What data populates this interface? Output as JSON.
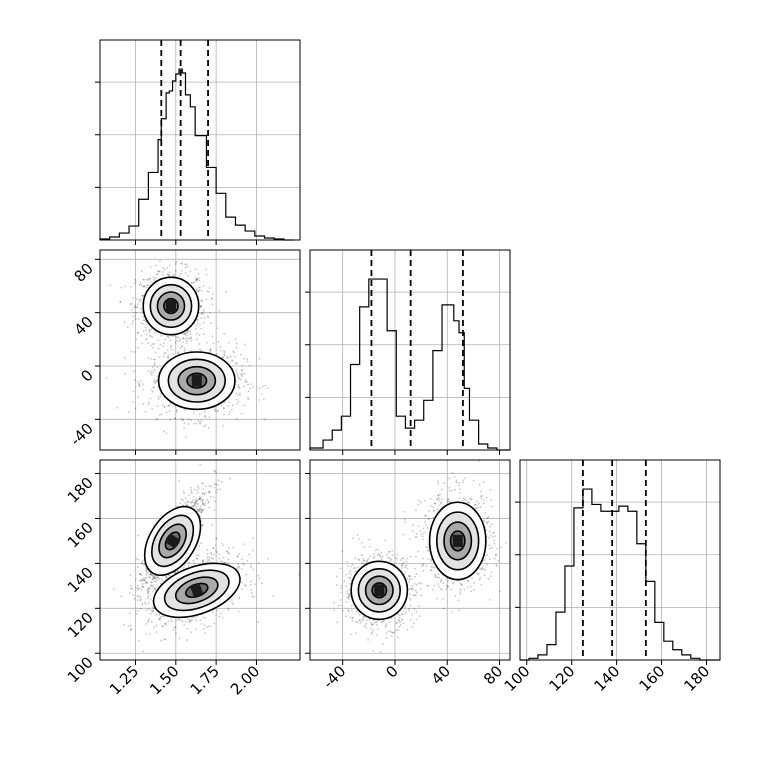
{
  "chart_data": [
    {
      "type": "histogram",
      "panel": "1D marginal, parameter 1",
      "x_ticks": [
        "1.25",
        "1.50",
        "1.75",
        "2.00"
      ],
      "x_ticks_values": [
        1.25,
        1.5,
        1.75,
        2.0
      ],
      "xlim": [
        1.03,
        2.27
      ],
      "bin_edges": [
        0.97,
        1.03,
        1.09,
        1.15,
        1.21,
        1.27,
        1.33,
        1.39,
        1.41,
        1.44,
        1.46,
        1.48,
        1.5,
        1.52,
        1.54,
        1.56,
        1.59,
        1.62,
        1.69,
        1.75,
        1.81,
        1.87,
        1.93,
        1.99,
        2.05,
        2.11,
        2.17,
        2.23
      ],
      "counts": [
        0,
        1,
        3,
        7,
        14,
        41,
        68,
        101,
        122,
        148,
        150,
        160,
        167,
        172,
        168,
        146,
        134,
        105,
        73,
        47,
        23,
        15,
        9,
        4,
        2,
        1,
        0
      ],
      "quantile_lines": [
        1.41,
        1.53,
        1.7
      ],
      "grid": true
    },
    {
      "type": "histogram",
      "panel": "1D marginal, parameter 2",
      "x_ticks": [
        "-40",
        "0",
        "40",
        "80"
      ],
      "x_ticks_values": [
        -40,
        0,
        40,
        80
      ],
      "xlim": [
        -65,
        88
      ],
      "bin_edges": [
        -65,
        -55,
        -48,
        -41,
        -34,
        -27,
        -20,
        -13,
        -6,
        1,
        8,
        15,
        22,
        29,
        36,
        42,
        45,
        49,
        53,
        57,
        64,
        71,
        78,
        85,
        88
      ],
      "counts": [
        1,
        5,
        10,
        17,
        43,
        72,
        86,
        86,
        60,
        17,
        11,
        15,
        25,
        50,
        73,
        73,
        65,
        59,
        31,
        15,
        3,
        1,
        0,
        0
      ],
      "quantile_lines": [
        -18,
        12,
        52
      ],
      "grid": true
    },
    {
      "type": "histogram",
      "panel": "1D marginal, parameter 3",
      "x_ticks": [
        "100",
        "120",
        "140",
        "160",
        "180"
      ],
      "x_ticks_values": [
        100,
        120,
        140,
        160,
        180
      ],
      "xlim": [
        97,
        186
      ],
      "bin_edges": [
        97,
        101,
        105,
        109,
        113,
        117,
        121,
        125,
        129,
        133,
        137,
        141,
        145,
        149,
        153,
        157,
        161,
        165,
        169,
        173,
        177,
        181,
        186
      ],
      "counts": [
        0,
        1,
        3,
        9,
        28,
        55,
        89,
        100,
        91,
        87,
        87,
        90,
        87,
        68,
        46,
        22,
        11,
        6,
        3,
        1,
        0,
        0
      ],
      "quantile_lines": [
        125,
        138,
        153
      ],
      "grid": true
    },
    {
      "type": "scatter_contour",
      "panel": "2D, parameter 1 vs parameter 2",
      "x_ticks": [
        "1.25",
        "1.50",
        "1.75",
        "2.00"
      ],
      "x_ticks_values": [
        1.25,
        1.5,
        1.75,
        2.0
      ],
      "y_ticks": [
        "-40",
        "0",
        "40",
        "80"
      ],
      "y_ticks_values": [
        -40,
        0,
        40,
        80
      ],
      "xlim": [
        1.03,
        2.27
      ],
      "ylim": [
        -63,
        87
      ],
      "clusters": [
        {
          "center": [
            1.47,
            45
          ],
          "spread": [
            0.08,
            10
          ]
        },
        {
          "center": [
            1.63,
            -11
          ],
          "spread": [
            0.11,
            10
          ]
        }
      ],
      "grid": true
    },
    {
      "type": "scatter_contour",
      "panel": "2D, parameter 1 vs parameter 3",
      "x_ticks": [
        "1.25",
        "1.50",
        "1.75",
        "2.00"
      ],
      "x_ticks_values": [
        1.25,
        1.5,
        1.75,
        2.0
      ],
      "y_ticks": [
        "100",
        "120",
        "140",
        "160",
        "180"
      ],
      "y_ticks_values": [
        100,
        120,
        140,
        160,
        180
      ],
      "xlim": [
        1.03,
        2.27
      ],
      "ylim": [
        97,
        186
      ],
      "clusters": [
        {
          "center": [
            1.48,
            150
          ],
          "spread": [
            0.08,
            9
          ],
          "correlation": 0.85
        },
        {
          "center": [
            1.63,
            128
          ],
          "spread": [
            0.11,
            6
          ],
          "correlation": 0.4
        }
      ],
      "grid": true
    },
    {
      "type": "scatter_contour",
      "panel": "2D, parameter 2 vs parameter 3",
      "x_ticks": [
        "-40",
        "0",
        "40",
        "80"
      ],
      "x_ticks_values": [
        -40,
        0,
        40,
        80
      ],
      "y_ticks": [
        "100",
        "120",
        "140",
        "160",
        "180"
      ],
      "y_ticks_values": [
        100,
        120,
        140,
        160,
        180
      ],
      "xlim": [
        -65,
        88
      ],
      "ylim": [
        97,
        186
      ],
      "clusters": [
        {
          "center": [
            -12,
            128
          ],
          "spread": [
            10,
            6
          ]
        },
        {
          "center": [
            48,
            150
          ],
          "spread": [
            10,
            8
          ]
        }
      ],
      "grid": true
    }
  ]
}
